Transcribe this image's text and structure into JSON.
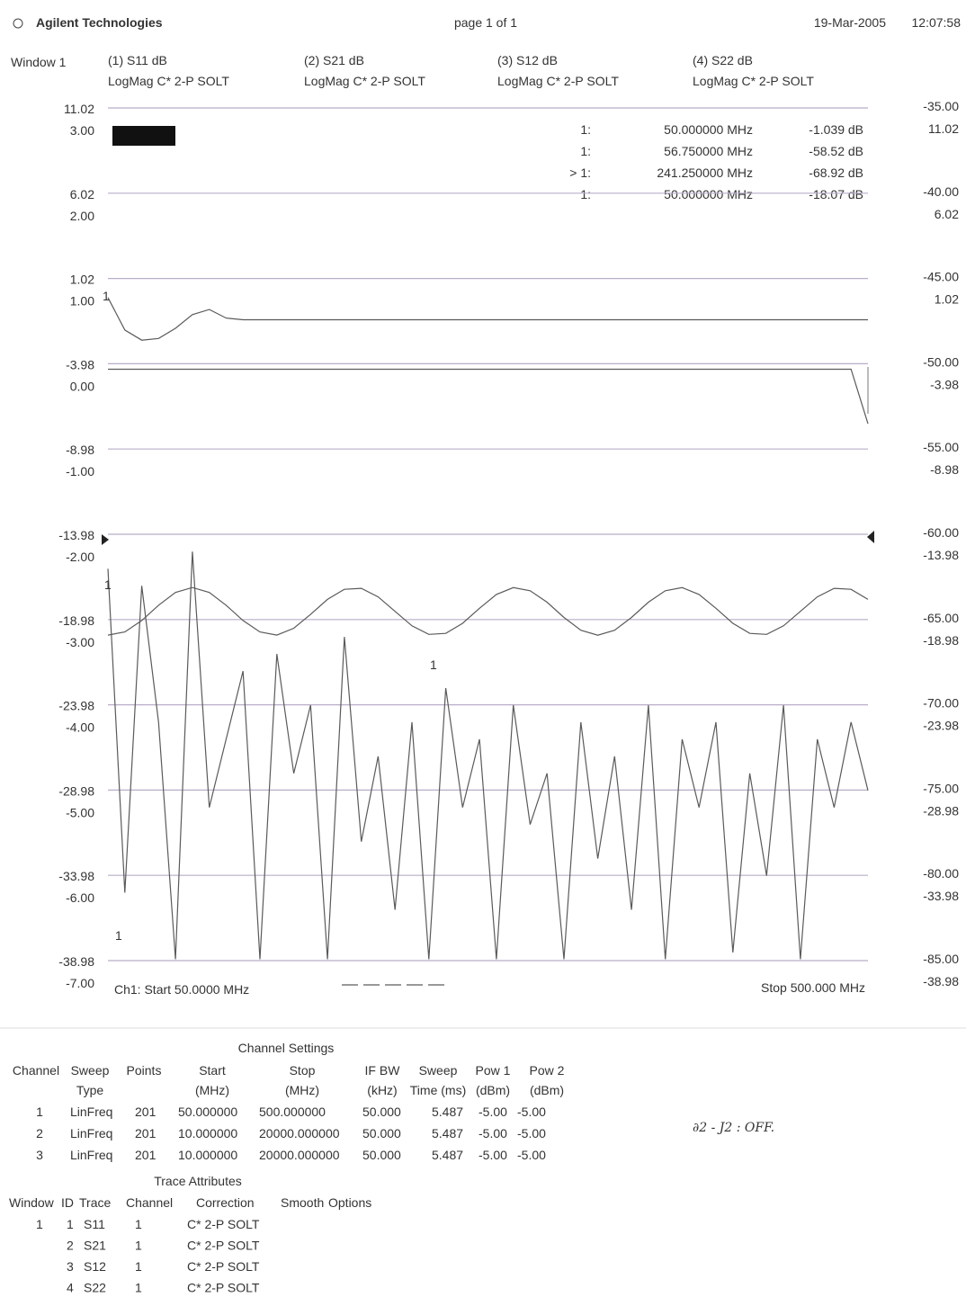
{
  "header": {
    "brand": "Agilent Technologies",
    "page": "page 1 of 1",
    "date": "19-Mar-2005",
    "time": "12:07:58"
  },
  "window": "Window 1",
  "markers": [
    {
      "label": "1:",
      "freq": "50.000000 MHz",
      "value": "-1.039 dB"
    },
    {
      "label": "1:",
      "freq": "56.750000 MHz",
      "value": "-58.52 dB"
    },
    {
      "label": "> 1:",
      "freq": "241.250000 MHz",
      "value": "-68.92 dB"
    },
    {
      "label": "1:",
      "freq": "50.000000 MHz",
      "value": "-18.07 dB"
    }
  ],
  "trace_marker_label": "1",
  "chart_data": {
    "type": "line",
    "xlim": [
      50,
      500
    ],
    "x": [
      50,
      60,
      70,
      80,
      90,
      100,
      110,
      120,
      130,
      140,
      150,
      160,
      170,
      180,
      190,
      200,
      210,
      220,
      230,
      240,
      250,
      260,
      270,
      280,
      290,
      300,
      310,
      320,
      330,
      340,
      350,
      360,
      370,
      380,
      390,
      400,
      410,
      420,
      430,
      440,
      450,
      460,
      470,
      480,
      490,
      500
    ],
    "ylim": [
      -38.98,
      11.02
    ],
    "yticks": [
      11.02,
      6.02,
      1.02,
      -3.98,
      -8.98,
      -13.98,
      -18.98,
      -23.98,
      -28.98,
      -33.98,
      -38.98
    ],
    "y2lim": [
      -7,
      3
    ],
    "y2ticks": [
      {
        "value": 3,
        "label": "3.00"
      },
      {
        "value": 2,
        "label": "2.00"
      },
      {
        "value": 1,
        "label": "1.00"
      },
      {
        "value": 0,
        "label": "0.00"
      },
      {
        "value": -1,
        "label": "-1.00"
      },
      {
        "value": -2,
        "label": "-2.00"
      },
      {
        "value": -3,
        "label": "-3.00"
      },
      {
        "value": -4,
        "label": "-4.00"
      },
      {
        "value": -5,
        "label": "-5.00"
      },
      {
        "value": -6,
        "label": "-6.00"
      },
      {
        "value": -7,
        "label": "-7.00"
      }
    ],
    "y3lim": [
      -85,
      -35
    ],
    "y3ticks": [
      {
        "value": -35,
        "label": "-35.00"
      },
      {
        "value": -40,
        "label": "-40.00"
      },
      {
        "value": -45,
        "label": "-45.00"
      },
      {
        "value": -50,
        "label": "-50.00"
      },
      {
        "value": -55,
        "label": "-55.00"
      },
      {
        "value": -60,
        "label": "-60.00"
      },
      {
        "value": -65,
        "label": "-65.00"
      },
      {
        "value": -70,
        "label": "-70.00"
      },
      {
        "value": -75,
        "label": "-75.00"
      },
      {
        "value": -80,
        "label": "-80.00"
      },
      {
        "value": -85,
        "label": "-85.00"
      }
    ],
    "grid": true,
    "series": [
      {
        "name": "(1) S11 dB",
        "format": "LogMag C* 2-P SOLT",
        "color": "#5a5a5a",
        "values": [
          -0.1,
          -2.0,
          -2.6,
          -2.5,
          -1.9,
          -1.1,
          -0.8,
          -1.3,
          -1.4,
          -1.4,
          -1.4,
          -1.4,
          -1.4,
          -1.4,
          -1.4,
          -1.4,
          -1.4,
          -1.4,
          -1.4,
          -1.4,
          -1.4,
          -1.4,
          -1.4,
          -1.4,
          -1.4,
          -1.4,
          -1.4,
          -1.4,
          -1.4,
          -1.4,
          -1.4,
          -1.4,
          -1.4,
          -1.4,
          -1.4,
          -1.4,
          -1.4,
          -1.4,
          -1.4,
          -1.4,
          -1.4,
          -1.4,
          -1.4,
          -1.4,
          -1.4,
          -1.4
        ]
      },
      {
        "name": "(2) S21 dB",
        "format": "LogMag C* 2-P SOLT",
        "color": "#5a5a5a",
        "values": [
          -4.3,
          -4.3,
          -4.3,
          -4.3,
          -4.3,
          -4.3,
          -4.3,
          -4.3,
          -4.3,
          -4.3,
          -4.3,
          -4.3,
          -4.3,
          -4.3,
          -4.3,
          -4.3,
          -4.3,
          -4.3,
          -4.3,
          -4.3,
          -4.3,
          -4.3,
          -4.3,
          -4.3,
          -4.3,
          -4.3,
          -4.3,
          -4.3,
          -4.3,
          -4.3,
          -4.3,
          -4.3,
          -4.3,
          -4.3,
          -4.3,
          -4.3,
          -4.3,
          -4.3,
          -4.3,
          -4.3,
          -4.3,
          -4.3,
          -4.3,
          -4.3,
          -4.3,
          -7.5
        ]
      },
      {
        "name": "(3) S12 dB",
        "format": "LogMag C* 2-P SOLT",
        "color": "#5a5a5a",
        "values": [
          -16,
          -35,
          -17,
          -25,
          -38.9,
          -15,
          -30,
          -26,
          -22,
          -38.9,
          -21,
          -28,
          -24,
          -38.9,
          -20,
          -32,
          -27,
          -36,
          -25,
          -38.9,
          -23,
          -30,
          -26,
          -38.9,
          -24,
          -31,
          -28,
          -38.9,
          -25,
          -33,
          -27,
          -36,
          -24,
          -38.9,
          -26,
          -30,
          -25,
          -38.5,
          -28,
          -34,
          -24,
          -38.9,
          -26,
          -30,
          -25,
          -29
        ]
      },
      {
        "name": "(4) S22 dB",
        "format": "LogMag C* 2-P SOLT",
        "color": "#5a5a5a",
        "values": [
          -19.89,
          -19.71,
          -19.04,
          -18.14,
          -17.39,
          -17.1,
          -17.39,
          -18.14,
          -19.04,
          -19.71,
          -19.89,
          -19.49,
          -18.68,
          -17.8,
          -17.21,
          -17.15,
          -17.65,
          -18.5,
          -19.35,
          -19.85,
          -19.79,
          -19.2,
          -18.32,
          -17.51,
          -17.11,
          -17.29,
          -17.96,
          -18.86,
          -19.61,
          -19.9,
          -19.61,
          -18.86,
          -17.96,
          -17.29,
          -17.11,
          -17.51,
          -18.32,
          -19.2,
          -19.79,
          -19.85,
          -19.35,
          -18.5,
          -17.65,
          -17.15,
          -17.21,
          -17.8
        ]
      }
    ]
  },
  "footer": {
    "start": "Ch1: Start 50.0000 MHz",
    "stop": "Stop 500.000 MHz"
  },
  "channel_settings": {
    "title": "Channel Settings",
    "headers": [
      [
        "Channel"
      ],
      [
        "Sweep",
        "Type"
      ],
      [
        "Points"
      ],
      [
        "Start",
        "(MHz)"
      ],
      [
        "Stop",
        "(MHz)"
      ],
      [
        "IF BW",
        "(kHz)"
      ],
      [
        "Sweep",
        "Time (ms)"
      ],
      [
        "Pow 1",
        "(dBm)"
      ],
      [
        "Pow 2",
        "(dBm)"
      ]
    ],
    "rows": [
      [
        "1",
        "LinFreq",
        "201",
        "50.000000",
        "500.000000",
        "50.000",
        "5.487",
        "-5.00",
        "-5.00"
      ],
      [
        "2",
        "LinFreq",
        "201",
        "10.000000",
        "20000.000000",
        "50.000",
        "5.487",
        "-5.00",
        "-5.00"
      ],
      [
        "3",
        "LinFreq",
        "201",
        "10.000000",
        "20000.000000",
        "50.000",
        "5.487",
        "-5.00",
        "-5.00"
      ]
    ]
  },
  "trace_attributes": {
    "title": "Trace Attributes",
    "headers": [
      "Window",
      "ID",
      "Trace",
      "Channel",
      "Correction",
      "Smooth",
      "Options"
    ],
    "rows": [
      {
        "window": "1",
        "id": "1",
        "trace": "S11",
        "channel": "1",
        "correction": "C* 2-P SOLT"
      },
      {
        "id": "2",
        "trace": "S21",
        "channel": "1",
        "correction": "C* 2-P SOLT"
      },
      {
        "id": "3",
        "trace": "S12",
        "channel": "1",
        "correction": "C* 2-P SOLT"
      },
      {
        "id": "4",
        "trace": "S22",
        "channel": "1",
        "correction": "C* 2-P SOLT"
      }
    ]
  },
  "note": "∂2 - J2 : OFF."
}
